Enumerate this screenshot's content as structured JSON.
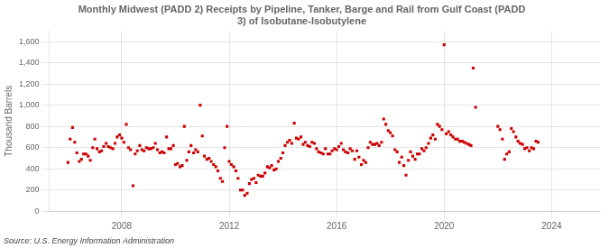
{
  "chart_data": {
    "type": "scatter",
    "title": "Monthly Midwest (PADD 2) Receipts by Pipeline, Tanker, Barge and Rail from Gulf Coast (PADD\n3) of Isobutane-Isobutylene",
    "ylabel": "Thousand Barrels",
    "annotations": [
      "Source: U.S. Energy Information Administration"
    ],
    "color": "#cc0000",
    "marker": "square",
    "grid": true,
    "xlim": [
      2005.3,
      2025.8
    ],
    "xticks": [
      2008,
      2012,
      2016,
      2020,
      2024
    ],
    "ylim": [
      0,
      1700
    ],
    "yticks": [
      0,
      200,
      400,
      600,
      800,
      {
        "value": 1000,
        "label": "1,000"
      },
      {
        "value": 1200,
        "label": "1,200"
      },
      {
        "value": 1400,
        "label": "1,400"
      },
      {
        "value": 1600,
        "label": "1,600"
      }
    ],
    "x": [
      2006.0,
      2006.08,
      2006.17,
      2006.25,
      2006.33,
      2006.42,
      2006.5,
      2006.58,
      2006.67,
      2006.75,
      2006.83,
      2006.92,
      2007.0,
      2007.08,
      2007.17,
      2007.25,
      2007.33,
      2007.42,
      2007.5,
      2007.58,
      2007.67,
      2007.75,
      2007.83,
      2007.92,
      2008.0,
      2008.08,
      2008.17,
      2008.25,
      2008.33,
      2008.42,
      2008.5,
      2008.58,
      2008.67,
      2008.75,
      2008.83,
      2008.92,
      2009.0,
      2009.08,
      2009.17,
      2009.25,
      2009.33,
      2009.42,
      2009.5,
      2009.58,
      2009.67,
      2009.75,
      2009.83,
      2009.92,
      2010.0,
      2010.08,
      2010.17,
      2010.25,
      2010.33,
      2010.42,
      2010.5,
      2010.58,
      2010.67,
      2010.75,
      2010.83,
      2010.92,
      2011.0,
      2011.08,
      2011.17,
      2011.25,
      2011.33,
      2011.42,
      2011.5,
      2011.58,
      2011.67,
      2011.75,
      2011.83,
      2011.92,
      2012.0,
      2012.08,
      2012.17,
      2012.25,
      2012.33,
      2012.42,
      2012.5,
      2012.58,
      2012.67,
      2012.75,
      2012.83,
      2012.92,
      2013.0,
      2013.08,
      2013.17,
      2013.25,
      2013.33,
      2013.42,
      2013.5,
      2013.58,
      2013.67,
      2013.75,
      2013.83,
      2013.92,
      2014.0,
      2014.08,
      2014.17,
      2014.25,
      2014.33,
      2014.42,
      2014.5,
      2014.58,
      2014.67,
      2014.75,
      2014.83,
      2014.92,
      2015.0,
      2015.08,
      2015.17,
      2015.25,
      2015.33,
      2015.42,
      2015.5,
      2015.58,
      2015.67,
      2015.75,
      2015.83,
      2015.92,
      2016.0,
      2016.08,
      2016.17,
      2016.25,
      2016.33,
      2016.42,
      2016.5,
      2016.58,
      2016.67,
      2016.75,
      2016.83,
      2016.92,
      2017.0,
      2017.08,
      2017.17,
      2017.25,
      2017.33,
      2017.42,
      2017.5,
      2017.58,
      2017.67,
      2017.75,
      2017.83,
      2017.92,
      2018.0,
      2018.08,
      2018.17,
      2018.25,
      2018.33,
      2018.42,
      2018.5,
      2018.58,
      2018.67,
      2018.75,
      2018.83,
      2018.92,
      2019.0,
      2019.08,
      2019.17,
      2019.25,
      2019.33,
      2019.42,
      2019.5,
      2019.58,
      2019.67,
      2019.75,
      2019.83,
      2019.92,
      2020.0,
      2020.08,
      2020.17,
      2020.25,
      2020.33,
      2020.42,
      2020.5,
      2020.58,
      2020.67,
      2020.75,
      2020.83,
      2020.92,
      2021.0,
      2021.08,
      2021.17,
      2022.0,
      2022.08,
      2022.17,
      2022.25,
      2022.33,
      2022.42,
      2022.5,
      2022.58,
      2022.67,
      2022.75,
      2022.83,
      2022.92,
      2023.0,
      2023.08,
      2023.17,
      2023.25,
      2023.33,
      2023.42,
      2023.5
    ],
    "values": [
      460,
      680,
      790,
      650,
      550,
      470,
      490,
      540,
      540,
      520,
      480,
      600,
      680,
      590,
      560,
      570,
      610,
      640,
      610,
      600,
      590,
      640,
      700,
      720,
      690,
      650,
      820,
      600,
      580,
      240,
      540,
      570,
      620,
      580,
      570,
      600,
      590,
      590,
      600,
      640,
      580,
      550,
      560,
      550,
      700,
      590,
      590,
      620,
      440,
      450,
      420,
      430,
      800,
      480,
      560,
      620,
      550,
      580,
      560,
      1000,
      710,
      520,
      490,
      500,
      470,
      440,
      420,
      380,
      310,
      280,
      600,
      800,
      470,
      440,
      420,
      380,
      310,
      200,
      200,
      150,
      170,
      260,
      300,
      310,
      270,
      340,
      330,
      330,
      360,
      420,
      410,
      430,
      390,
      400,
      470,
      500,
      550,
      620,
      650,
      670,
      640,
      830,
      690,
      680,
      700,
      630,
      650,
      620,
      610,
      650,
      640,
      590,
      560,
      550,
      540,
      590,
      540,
      540,
      570,
      590,
      580,
      610,
      640,
      580,
      560,
      550,
      590,
      570,
      490,
      570,
      510,
      440,
      480,
      460,
      600,
      650,
      630,
      630,
      640,
      620,
      650,
      870,
      820,
      760,
      740,
      710,
      580,
      560,
      460,
      510,
      430,
      340,
      480,
      560,
      520,
      490,
      540,
      540,
      590,
      570,
      600,
      640,
      690,
      720,
      680,
      820,
      800,
      770,
      1570,
      730,
      750,
      720,
      700,
      680,
      680,
      660,
      660,
      650,
      640,
      630,
      620,
      1350,
      980,
      800,
      770,
      680,
      490,
      540,
      560,
      780,
      750,
      700,
      660,
      640,
      630,
      590,
      600,
      570,
      600,
      590,
      660,
      650
    ]
  }
}
